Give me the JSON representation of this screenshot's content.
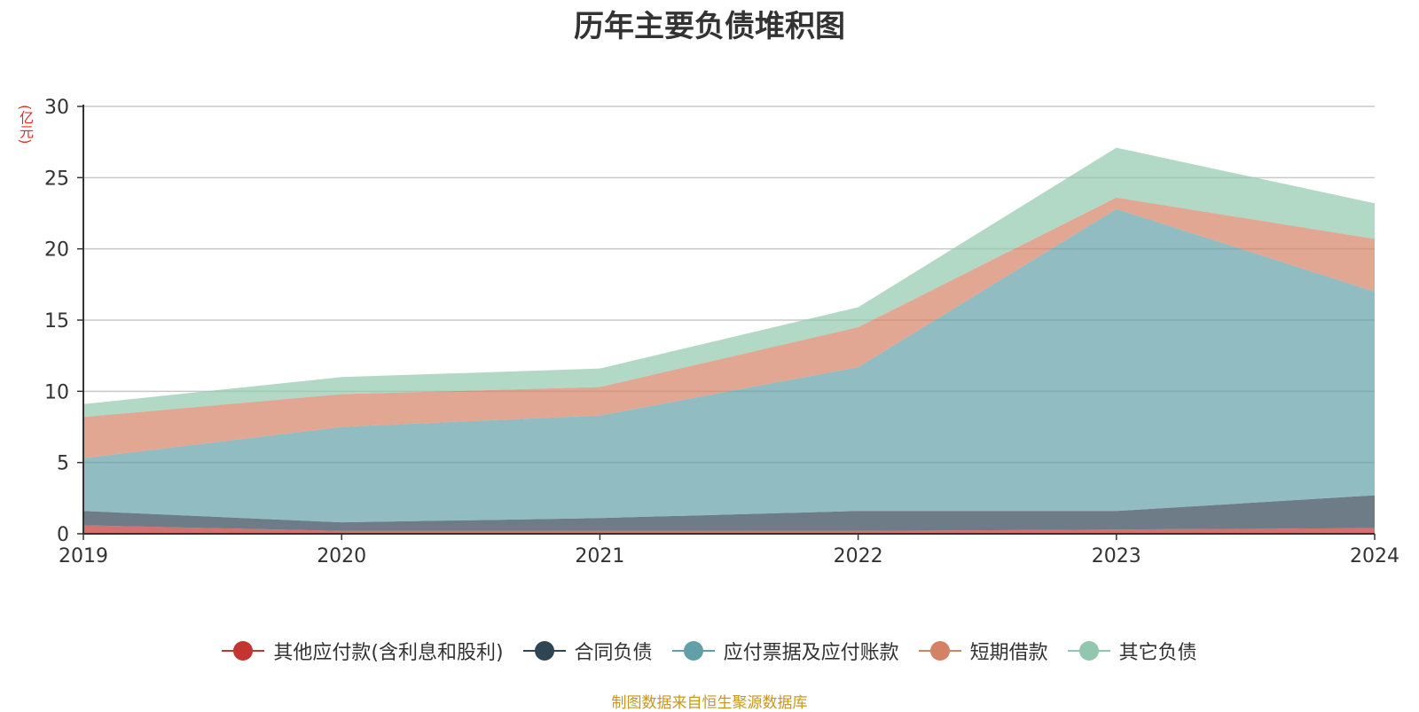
{
  "chart_data": {
    "type": "area",
    "stacked": true,
    "title": "历年主要负债堆积图",
    "unit_label": "(亿元)",
    "x": [
      "2019",
      "2020",
      "2021",
      "2022",
      "2023",
      "2024"
    ],
    "ylim": [
      0,
      30
    ],
    "yticks": [
      0,
      5,
      10,
      15,
      20,
      25,
      30
    ],
    "grid": true,
    "legend_position": "bottom",
    "series": [
      {
        "name": "其他应付款(含利息和股利)",
        "color": "#c23531",
        "values": [
          0.6,
          0.2,
          0.2,
          0.2,
          0.3,
          0.4
        ]
      },
      {
        "name": "合同负债",
        "color": "#2f4554",
        "values": [
          1.0,
          0.6,
          0.9,
          1.4,
          1.3,
          2.3
        ]
      },
      {
        "name": "应付票据及应付账款",
        "color": "#61a0a8",
        "values": [
          3.7,
          6.7,
          7.2,
          10.1,
          21.2,
          14.3
        ]
      },
      {
        "name": "短期借款",
        "color": "#d48265",
        "values": [
          2.9,
          2.3,
          2.0,
          2.8,
          0.8,
          3.7
        ]
      },
      {
        "name": "其它负债",
        "color": "#91c7ae",
        "values": [
          0.9,
          1.2,
          1.3,
          1.4,
          3.5,
          2.5
        ]
      }
    ],
    "source_note": "制图数据来自恒生聚源数据库"
  }
}
